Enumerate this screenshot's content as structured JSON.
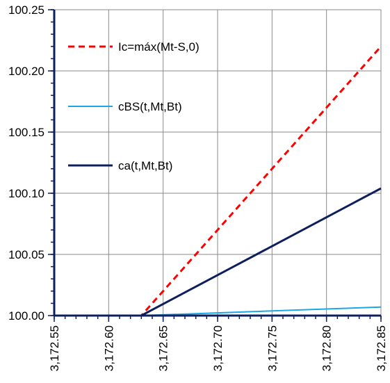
{
  "chart_data": {
    "type": "line",
    "title": "",
    "xlabel": "",
    "ylabel": "",
    "xlim": [
      3172.55,
      3172.85
    ],
    "ylim": [
      100.0,
      100.25
    ],
    "x_ticks": [
      3172.55,
      3172.6,
      3172.65,
      3172.7,
      3172.75,
      3172.8,
      3172.85
    ],
    "x_tick_labels": [
      "3,172.55",
      "3,172.60",
      "3,172.65",
      "3,172.70",
      "3,172.75",
      "3,172.80",
      "3,172.85"
    ],
    "y_ticks": [
      100.0,
      100.05,
      100.1,
      100.15,
      100.2,
      100.25
    ],
    "y_tick_labels": [
      "100.00",
      "100.05",
      "100.10",
      "100.15",
      "100.20",
      "100.25"
    ],
    "grid": true,
    "legend_position": "top-left",
    "series": [
      {
        "name": "Ic=máx(Mt-S,0)",
        "color": "#ff0000",
        "dash": "dashed",
        "x": [
          3172.55,
          3172.63,
          3172.85
        ],
        "y": [
          100.0,
          100.0,
          100.22
        ]
      },
      {
        "name": "cBS(t,Mt,Bt)",
        "color": "#1aa7e6",
        "dash": "solid",
        "x": [
          3172.55,
          3172.63,
          3172.85
        ],
        "y": [
          100.0,
          100.0,
          100.007
        ]
      },
      {
        "name": "ca(t,Mt,Bt)",
        "color": "#0d1f5c",
        "dash": "solid",
        "x": [
          3172.55,
          3172.63,
          3172.85
        ],
        "y": [
          100.0,
          100.0,
          100.104
        ]
      }
    ]
  }
}
